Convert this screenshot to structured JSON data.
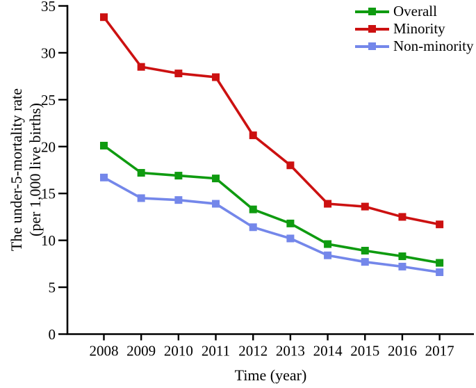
{
  "chart_data": {
    "type": "line",
    "title": "",
    "x": [
      2008,
      2009,
      2010,
      2011,
      2012,
      2013,
      2014,
      2015,
      2016,
      2017
    ],
    "series": [
      {
        "name": "Overall",
        "color": "#0f9b10",
        "values": [
          20.1,
          17.2,
          16.9,
          16.6,
          13.3,
          11.8,
          9.6,
          8.9,
          8.3,
          7.6
        ]
      },
      {
        "name": "Minority",
        "color": "#cc1111",
        "values": [
          33.8,
          28.5,
          27.8,
          27.4,
          21.2,
          18.0,
          13.9,
          13.6,
          12.5,
          11.7
        ]
      },
      {
        "name": "Non-minority",
        "color": "#7487ea",
        "values": [
          16.7,
          14.5,
          14.3,
          13.9,
          11.4,
          10.2,
          8.4,
          7.7,
          7.2,
          6.6
        ]
      }
    ],
    "xlabel": "Time (year)",
    "ylabel": [
      "The under-5-mortality rate",
      "(per 1,000 live births)"
    ],
    "ylim": [
      0,
      35
    ],
    "ytick_step": 5,
    "grid": false,
    "legend_position": "top-right",
    "marker": "square",
    "axis_color": "#000000",
    "background": "#ffffff"
  }
}
